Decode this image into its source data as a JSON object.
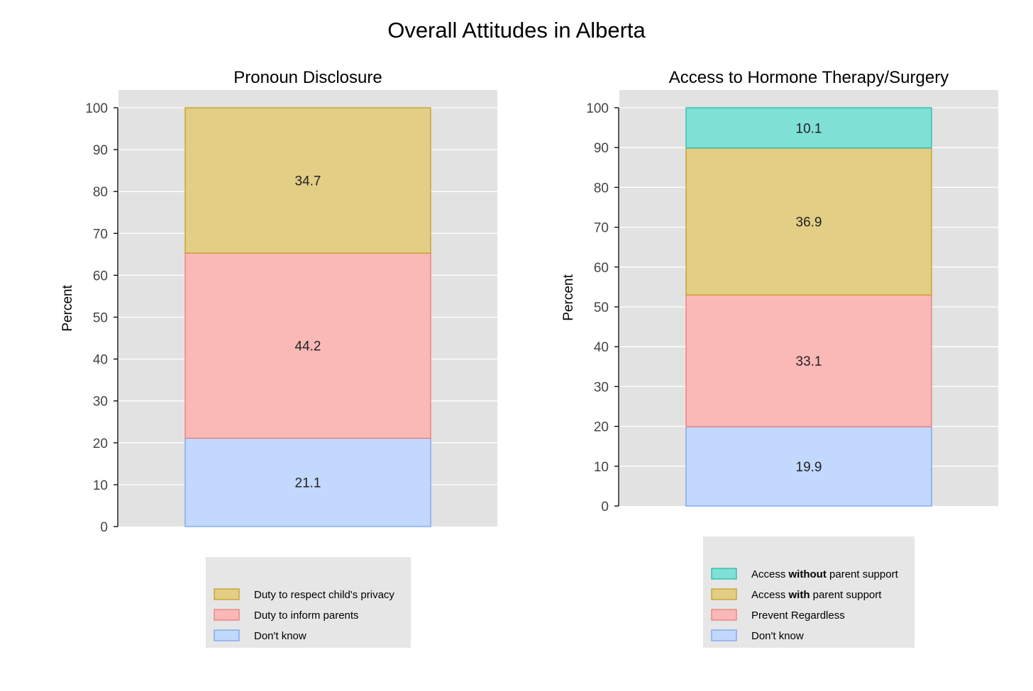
{
  "title": "Overall Attitudes in Alberta",
  "chart_data": [
    {
      "type": "bar",
      "stacked": true,
      "title": "Pronoun Disclosure",
      "xlabel": "",
      "ylabel": "Percent",
      "ylim": [
        0,
        100
      ],
      "yticks": [
        "0",
        "10",
        "20",
        "30",
        "40",
        "50",
        "60",
        "70",
        "80",
        "90",
        "100"
      ],
      "grid": true,
      "legend_position": "bottom",
      "series": [
        {
          "name": "Don't know",
          "value": 21.1,
          "label": "21.1",
          "fill": "#c2d8fc",
          "stroke": "#6e9ef0"
        },
        {
          "name": "Duty to inform parents",
          "value": 44.2,
          "label": "44.2",
          "fill": "#fab9b7",
          "stroke": "#ef7370"
        },
        {
          "name": "Duty to respect child's privacy",
          "value": 34.7,
          "label": "34.7",
          "fill": "#e2ce84",
          "stroke": "#c49a1c"
        }
      ],
      "legend": [
        {
          "bold": "",
          "text": "Duty to respect child's privacy",
          "pre": "",
          "post": "",
          "fill": "#e2ce84",
          "stroke": "#c49a1c"
        },
        {
          "bold": "",
          "text": "Duty to inform parents",
          "pre": "",
          "post": "",
          "fill": "#fab9b7",
          "stroke": "#ef7370"
        },
        {
          "bold": "",
          "text": "Don't know",
          "pre": "",
          "post": "",
          "fill": "#c2d8fc",
          "stroke": "#6e9ef0"
        }
      ]
    },
    {
      "type": "bar",
      "stacked": true,
      "title": "Access to Hormone Therapy/Surgery",
      "xlabel": "",
      "ylabel": "Percent",
      "ylim": [
        0,
        100
      ],
      "yticks": [
        "0",
        "10",
        "20",
        "30",
        "40",
        "50",
        "60",
        "70",
        "80",
        "90",
        "100"
      ],
      "grid": true,
      "legend_position": "bottom",
      "series": [
        {
          "name": "Don't know",
          "value": 19.9,
          "label": "19.9",
          "fill": "#c2d8fc",
          "stroke": "#6e9ef0"
        },
        {
          "name": "Prevent Regardless",
          "value": 33.1,
          "label": "33.1",
          "fill": "#fab9b7",
          "stroke": "#ef7370"
        },
        {
          "name": "Access with parent support",
          "value": 36.9,
          "label": "36.9",
          "fill": "#e2ce84",
          "stroke": "#c49a1c"
        },
        {
          "name": "Access without parent support",
          "value": 10.1,
          "label": "10.1",
          "fill": "#7fe0d6",
          "stroke": "#1fb5a6"
        }
      ],
      "legend": [
        {
          "bold": "without",
          "pre": "Access ",
          "post": " parent support",
          "text": "",
          "fill": "#7fe0d6",
          "stroke": "#1fb5a6"
        },
        {
          "bold": "with",
          "pre": "Access ",
          "post": " parent support",
          "text": "",
          "fill": "#e2ce84",
          "stroke": "#c49a1c"
        },
        {
          "bold": "",
          "text": "Prevent Regardless",
          "pre": "",
          "post": "",
          "fill": "#fab9b7",
          "stroke": "#ef7370"
        },
        {
          "bold": "",
          "text": "Don't know",
          "pre": "",
          "post": "",
          "fill": "#c2d8fc",
          "stroke": "#6e9ef0"
        }
      ]
    }
  ]
}
